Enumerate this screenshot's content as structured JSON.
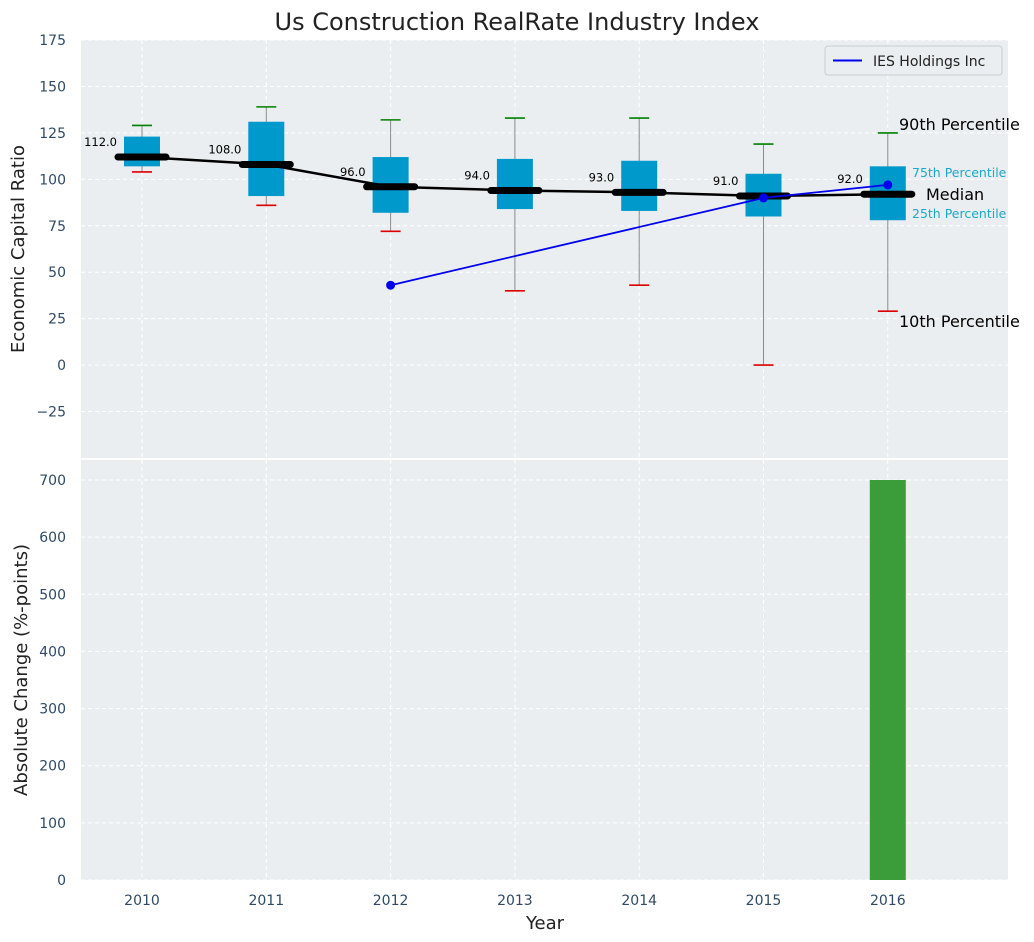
{
  "chart_data": [
    {
      "type": "box",
      "title": "Us Construction RealRate Industry Index",
      "xlabel": "",
      "ylabel": "Economic Capital Ratio",
      "ylim": [
        -50,
        175
      ],
      "yticks": [
        -25,
        0,
        25,
        50,
        75,
        100,
        125,
        150,
        175
      ],
      "categories": [
        "2010",
        "2011",
        "2012",
        "2013",
        "2014",
        "2015",
        "2016"
      ],
      "boxes": [
        {
          "year": "2010",
          "p10": 104,
          "p25": 107,
          "median": 112,
          "p75": 123,
          "p90": 129
        },
        {
          "year": "2011",
          "p10": 86,
          "p25": 91,
          "median": 108,
          "p75": 131,
          "p90": 139
        },
        {
          "year": "2012",
          "p10": 72,
          "p25": 82,
          "median": 96,
          "p75": 112,
          "p90": 132
        },
        {
          "year": "2013",
          "p10": 40,
          "p25": 84,
          "median": 94,
          "p75": 111,
          "p90": 133
        },
        {
          "year": "2014",
          "p10": 43,
          "p25": 83,
          "median": 93,
          "p75": 110,
          "p90": 133
        },
        {
          "year": "2015",
          "p10": 0,
          "p25": 80,
          "median": 91,
          "p75": 103,
          "p90": 119
        },
        {
          "year": "2016",
          "p10": 29,
          "p25": 78,
          "median": 92,
          "p75": 107,
          "p90": 125
        }
      ],
      "median_labels": [
        "112.0",
        "108.0",
        "96.0",
        "94.0",
        "93.0",
        "91.0",
        "92.0"
      ],
      "series": [
        {
          "name": "IES Holdings Inc",
          "x": [
            "2012",
            "2015",
            "2016"
          ],
          "values": [
            43,
            90,
            97
          ],
          "color": "#0000ee"
        }
      ],
      "median_line_color": "#000000",
      "box_color": "#0099cc",
      "p90_cap_color": "#008000",
      "p10_cap_color": "#dd0000",
      "annotations": {
        "p90": "90th Percentile",
        "p75": "75th Percentile",
        "median": "Median",
        "p25": "25th Percentile",
        "p10": "10th Percentile"
      },
      "legend": {
        "position": "upper-right",
        "entries": [
          "IES Holdings Inc"
        ]
      },
      "grid": true
    },
    {
      "type": "bar",
      "xlabel": "Year",
      "ylabel": "Absolute Change (%-points)",
      "ylim": [
        0,
        735
      ],
      "yticks": [
        0,
        100,
        200,
        300,
        400,
        500,
        600,
        700
      ],
      "categories": [
        "2010",
        "2011",
        "2012",
        "2013",
        "2014",
        "2015",
        "2016"
      ],
      "values": [
        null,
        null,
        null,
        null,
        null,
        null,
        700
      ],
      "bar_color": "#3a9d3a",
      "grid": true
    }
  ]
}
